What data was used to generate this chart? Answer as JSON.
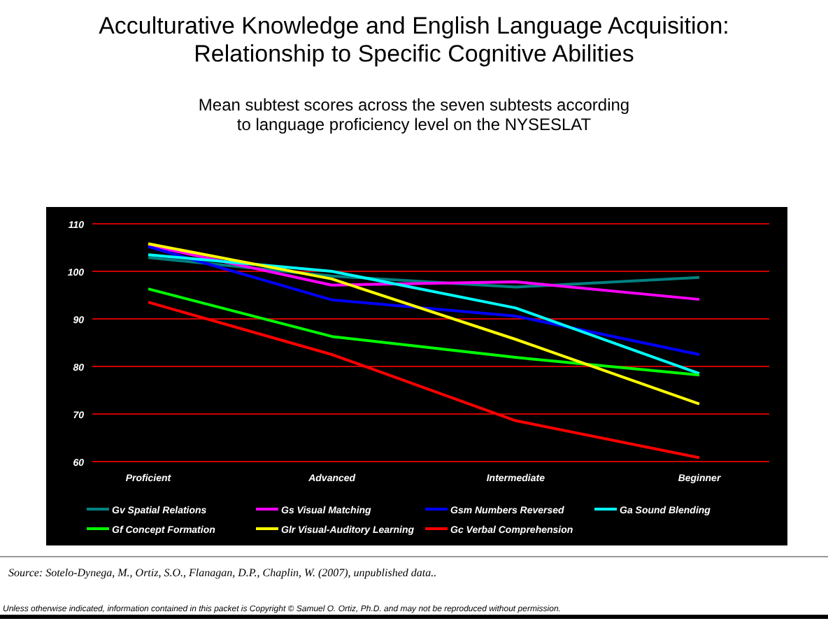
{
  "chart_data": {
    "type": "line",
    "title": "Acculturative Knowledge and English Language Acquisition: Relationship to Specific Cognitive Abilities",
    "subtitle": "Mean subtest scores across the seven subtests according to language proficiency level on the NYSESLAT",
    "categories": [
      "Proficient",
      "Advanced",
      "Intermediate",
      "Beginner"
    ],
    "series": [
      {
        "name": "Gv Spatial Relations",
        "color": "#008080",
        "values": [
          102.9,
          99,
          96.7,
          98.7
        ]
      },
      {
        "name": "Gs Visual Matching",
        "color": "#ff00ff",
        "values": [
          105.5,
          97.1,
          97.8,
          94.1
        ]
      },
      {
        "name": "Gsm Numbers Reversed",
        "color": "#0000ff",
        "values": [
          105.2,
          94,
          90.6,
          82.5
        ]
      },
      {
        "name": "Ga Sound Blending",
        "color": "#00ffff",
        "values": [
          103.5,
          100,
          92.3,
          78.5
        ]
      },
      {
        "name": "Gf Concept Formation",
        "color": "#00ff00",
        "values": [
          96.3,
          86.3,
          81.9,
          78.2
        ]
      },
      {
        "name": "Glr Visual-Auditory Learning",
        "color": "#ffff00",
        "values": [
          105.8,
          98.4,
          85.7,
          72.1
        ]
      },
      {
        "name": "Gc Verbal Comprehension",
        "color": "#ff0000",
        "values": [
          93.5,
          82.5,
          68.6,
          60.8
        ]
      }
    ],
    "ylim": [
      60,
      110
    ],
    "yticks": [
      60,
      70,
      80,
      90,
      100,
      110
    ],
    "grid": "y",
    "legend": "bottom",
    "marker": "none",
    "line_style": "solid",
    "annotations": [
      "Source: Sotelo-Dynega, M., Ortiz, S.O., Flanagan, D.P., Chaplin, W. (2007), unpublished data..",
      "Unless otherwise indicated, information contained in this packet is Copyright © Samuel O. Ortiz, Ph.D. and may not be reproduced without permission."
    ]
  }
}
